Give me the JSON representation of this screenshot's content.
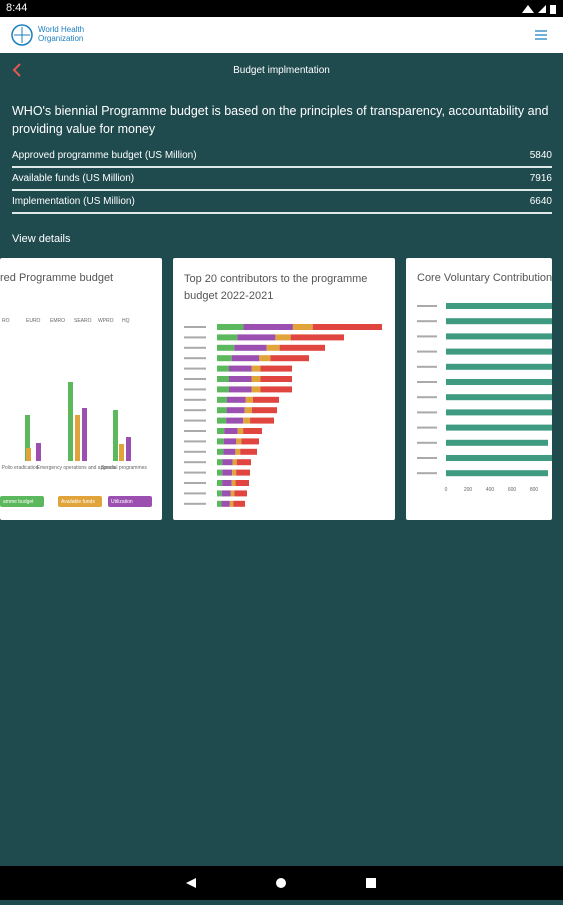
{
  "status_bar": {
    "time": "8:44"
  },
  "header": {
    "logo_text_1": "World Health",
    "logo_text_2": "Organization"
  },
  "nav": {
    "title": "Budget implmentation"
  },
  "description": "WHO's biennial Programme budget is based on the principles of transparency, accountability and providing value for money",
  "rows": [
    {
      "label": "Approved programme budget (US Million)",
      "value": "5840"
    },
    {
      "label": "Available funds (US Million)",
      "value": "7916"
    },
    {
      "label": "Implementation (US Million)",
      "value": "6640"
    }
  ],
  "view_details": "View details",
  "cards": [
    {
      "title": "red Programme budget",
      "tabs": [
        "RO",
        "EURO",
        "EMRO",
        "SEARO",
        "WPRO",
        "HQ"
      ],
      "categories": [
        "Polio eradication",
        "Emergency operations and appeals",
        "Special programmes"
      ],
      "legend": [
        "amme budget",
        "Available funds",
        "Utilization"
      ]
    },
    {
      "title": "Top 20 contributors to the programme budget 2022-2021"
    },
    {
      "title": "Core Voluntary Contribution",
      "ticks": [
        "0",
        "200",
        "400",
        "600",
        "800"
      ]
    }
  ]
}
